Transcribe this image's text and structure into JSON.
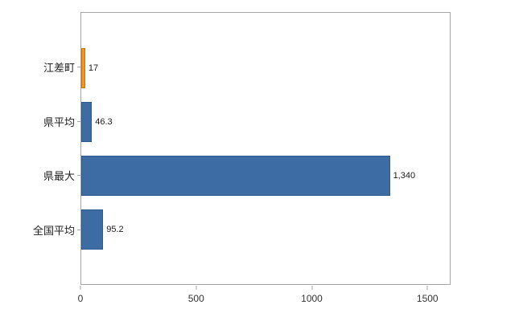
{
  "chart_data": {
    "type": "bar",
    "orientation": "horizontal",
    "title": "",
    "xlabel": "",
    "ylabel": "",
    "categories": [
      "江差町",
      "県平均",
      "県最大",
      "全国平均"
    ],
    "values": [
      17,
      46.3,
      1340,
      95.2
    ],
    "value_labels": [
      "17",
      "46.3",
      "1,340",
      "95.2"
    ],
    "series_colors": [
      "#f7941e",
      "#3d6ba4",
      "#3d6ba4",
      "#3d6ba4"
    ],
    "bar_border_colors": [
      "#c8770f",
      "#2e5a8f",
      "#2e5a8f",
      "#2e5a8f"
    ],
    "x_ticks": [
      "0",
      "500",
      "1000",
      "1500"
    ],
    "x_tick_values": [
      0,
      500,
      1000,
      1500
    ],
    "xlim": [
      0,
      1600
    ],
    "grid": false,
    "legend": "none",
    "plot_border_color": "#a6a6a6",
    "background_color": "#ffffff",
    "value_label_color": "#1a1a1a",
    "tick_label_color": "#333333"
  }
}
